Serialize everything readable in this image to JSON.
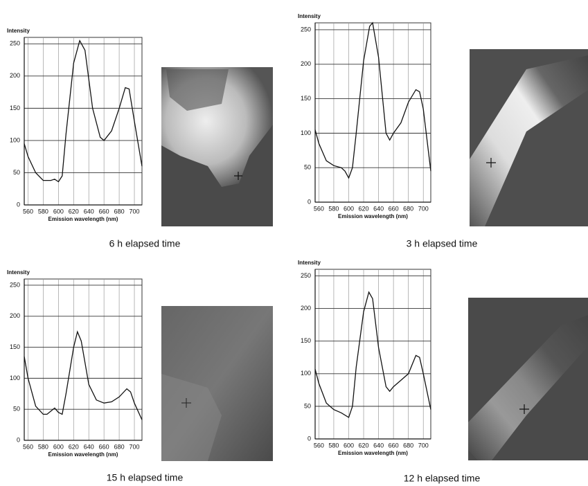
{
  "chart_data": [
    {
      "type": "line",
      "title": "6 h elapsed time",
      "y_label": "Intensity",
      "x_label": "Emission wavelength (nm)",
      "color": "#111111",
      "x": [
        555,
        560,
        570,
        580,
        590,
        595,
        600,
        605,
        610,
        620,
        628,
        635,
        645,
        655,
        660,
        670,
        680,
        688,
        693,
        700,
        710
      ],
      "values": [
        95,
        75,
        50,
        38,
        38,
        40,
        36,
        45,
        110,
        220,
        255,
        240,
        150,
        105,
        100,
        115,
        150,
        182,
        180,
        130,
        60
      ],
      "xlim": [
        555,
        710
      ],
      "ylim": [
        0,
        260
      ],
      "xticks": [
        560,
        580,
        600,
        620,
        640,
        660,
        680,
        700
      ],
      "yticks": [
        0,
        50,
        100,
        150,
        200,
        250
      ],
      "grid": true
    },
    {
      "type": "line",
      "title": "3 h elapsed time",
      "y_label": "Intensity",
      "x_label": "Emission wavelength (nm)",
      "color": "#111111",
      "x": [
        555,
        560,
        570,
        580,
        590,
        595,
        600,
        605,
        610,
        620,
        628,
        632,
        640,
        650,
        655,
        660,
        670,
        680,
        690,
        695,
        700,
        710
      ],
      "values": [
        105,
        85,
        60,
        53,
        50,
        45,
        35,
        50,
        100,
        205,
        255,
        260,
        210,
        100,
        90,
        100,
        115,
        145,
        163,
        160,
        135,
        45
      ],
      "xlim": [
        555,
        710
      ],
      "ylim": [
        0,
        260
      ],
      "xticks": [
        560,
        580,
        600,
        620,
        640,
        660,
        680,
        700
      ],
      "yticks": [
        0,
        50,
        100,
        150,
        200,
        250
      ],
      "grid": true
    },
    {
      "type": "line",
      "title": "15 h elapsed time",
      "y_label": "Intensity",
      "x_label": "Emission wavelength (nm)",
      "color": "#111111",
      "x": [
        555,
        560,
        570,
        580,
        585,
        595,
        600,
        605,
        610,
        620,
        625,
        630,
        640,
        650,
        660,
        670,
        680,
        690,
        695,
        700,
        710
      ],
      "values": [
        135,
        100,
        55,
        42,
        42,
        52,
        45,
        42,
        75,
        150,
        175,
        160,
        90,
        65,
        60,
        62,
        70,
        83,
        78,
        60,
        33
      ],
      "xlim": [
        555,
        710
      ],
      "ylim": [
        0,
        260
      ],
      "xticks": [
        560,
        580,
        600,
        620,
        640,
        660,
        680,
        700
      ],
      "yticks": [
        0,
        50,
        100,
        150,
        200,
        250
      ],
      "grid": true
    },
    {
      "type": "line",
      "title": "12 h elapsed time",
      "y_label": "Intensity",
      "x_label": "Emission wavelength (nm)",
      "color": "#111111",
      "x": [
        555,
        560,
        570,
        580,
        590,
        600,
        605,
        610,
        620,
        627,
        632,
        640,
        650,
        655,
        660,
        670,
        680,
        690,
        695,
        700,
        710
      ],
      "values": [
        107,
        85,
        55,
        45,
        40,
        33,
        50,
        110,
        195,
        225,
        215,
        140,
        80,
        73,
        80,
        90,
        100,
        128,
        125,
        100,
        45
      ],
      "xlim": [
        555,
        710
      ],
      "ylim": [
        0,
        260
      ],
      "xticks": [
        560,
        580,
        600,
        620,
        640,
        660,
        680,
        700
      ],
      "yticks": [
        0,
        50,
        100,
        150,
        200,
        250
      ],
      "grid": true
    }
  ]
}
